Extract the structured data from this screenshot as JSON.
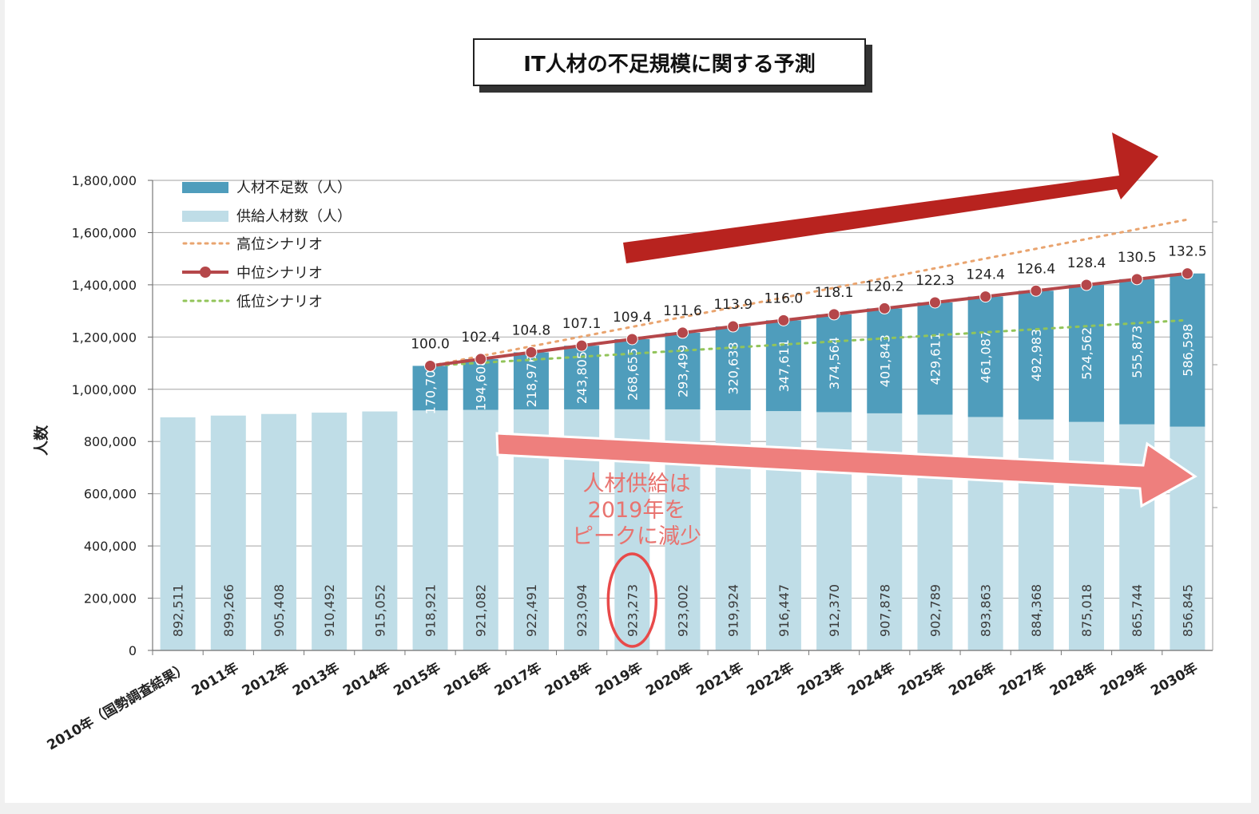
{
  "title": "IT人材の不足規模に関する予測",
  "annotation": "人材供給は\n2019年を\nピークに減少",
  "colors": {
    "shortage": "#4f9dbc",
    "supply": "#bfdde7",
    "high_line": "#e9a46f",
    "mid_line": "#b5474a",
    "low_line": "#92c45a",
    "big_arrow": "#b8231f",
    "supply_arrow": "#ee7f7d",
    "highlight_circle": "#e84a4a"
  },
  "legend": [
    {
      "label": "人材不足数（人）",
      "key": "shortage"
    },
    {
      "label": "供給人材数（人）",
      "key": "supply"
    },
    {
      "label": "高位シナリオ",
      "key": "high"
    },
    {
      "label": "中位シナリオ",
      "key": "mid"
    },
    {
      "label": "低位シナリオ",
      "key": "low"
    }
  ],
  "chart_data": {
    "type": "bar",
    "stacked": true,
    "ylabel": "人数",
    "ylim": [
      0,
      1800000
    ],
    "yticks": [
      "0",
      "200,000",
      "400,000",
      "600,000",
      "800,000",
      "1,000,000",
      "1,200,000",
      "1,400,000",
      "1,600,000",
      "1,800,000"
    ],
    "grid": true,
    "legend_position": "top-left",
    "categories": [
      "2010年（国勢調査結果）",
      "2011年",
      "2012年",
      "2013年",
      "2014年",
      "2015年",
      "2016年",
      "2017年",
      "2018年",
      "2019年",
      "2020年",
      "2021年",
      "2022年",
      "2023年",
      "2024年",
      "2025年",
      "2026年",
      "2027年",
      "2028年",
      "2029年",
      "2030年"
    ],
    "series": [
      {
        "name": "供給人材数（人）",
        "values": [
          892511,
          899266,
          905408,
          910492,
          915052,
          918921,
          921082,
          922491,
          923094,
          923273,
          923002,
          919924,
          916447,
          912370,
          907878,
          902789,
          893863,
          884368,
          875018,
          865744,
          856845
        ],
        "labels": [
          "892,511",
          "899,266",
          "905,408",
          "910,492",
          "915,052",
          "918,921",
          "921,082",
          "922,491",
          "923,094",
          "923,273",
          "923,002",
          "919,924",
          "916,447",
          "912,370",
          "907,878",
          "902,789",
          "893,863",
          "884,368",
          "875,018",
          "865,744",
          "856,845"
        ]
      },
      {
        "name": "人材不足数（人）",
        "values": [
          null,
          null,
          null,
          null,
          null,
          170700,
          194608,
          218976,
          243805,
          268655,
          293499,
          320638,
          347611,
          374564,
          401843,
          429611,
          461087,
          492983,
          524562,
          555873,
          586598
        ],
        "labels": [
          "",
          "",
          "",
          "",
          "",
          "170,700",
          "194,608",
          "218,976",
          "243,805",
          "268,655",
          "293,499",
          "320,638",
          "347,611",
          "374,564",
          "401,843",
          "429,611",
          "461,087",
          "492,983",
          "524,562",
          "555,873",
          "586,598"
        ]
      }
    ],
    "lines": [
      {
        "name": "高位シナリオ",
        "style": "dotted",
        "start": [
          5,
          1089621
        ],
        "end": [
          20,
          1650000
        ]
      },
      {
        "name": "低位シナリオ",
        "style": "dotted",
        "start": [
          5,
          1089621
        ],
        "end": [
          20,
          1265000
        ]
      }
    ],
    "mid_index": {
      "name": "中位シナリオ",
      "labels": [
        "",
        "",
        "",
        "",
        "",
        "100.0",
        "102.4",
        "104.8",
        "107.1",
        "109.4",
        "111.6",
        "113.9",
        "116.0",
        "118.1",
        "120.2",
        "122.3",
        "124.4",
        "126.4",
        "128.4",
        "130.5",
        "132.5"
      ]
    },
    "highlight_category": "2019年"
  }
}
